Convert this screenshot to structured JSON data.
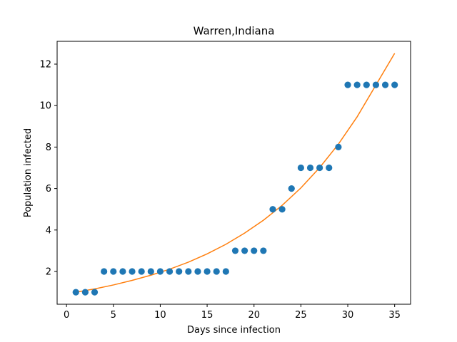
{
  "chart_data": {
    "type": "scatter",
    "title": "Warren,Indiana",
    "xlabel": "Days since infection",
    "ylabel": "Population infected",
    "xlim": [
      -1.0,
      36.7
    ],
    "ylim": [
      0.42,
      13.1
    ],
    "x_ticks": [
      0,
      5,
      10,
      15,
      20,
      25,
      30,
      35
    ],
    "y_ticks": [
      2,
      4,
      6,
      8,
      10,
      12
    ],
    "grid": false,
    "series": [
      {
        "kind": "points",
        "color": "#1f77b4",
        "x": [
          1,
          2,
          3,
          4,
          5,
          6,
          7,
          8,
          9,
          10,
          11,
          12,
          13,
          14,
          15,
          16,
          17,
          18,
          19,
          20,
          21,
          22,
          23,
          24,
          25,
          26,
          27,
          28,
          29,
          30,
          31,
          32,
          33,
          34,
          35
        ],
        "y": [
          1,
          1,
          1,
          2,
          2,
          2,
          2,
          2,
          2,
          2,
          2,
          2,
          2,
          2,
          2,
          2,
          2,
          3,
          3,
          3,
          3,
          5,
          5,
          6,
          7,
          7,
          7,
          7,
          8,
          11,
          11,
          11,
          11,
          11,
          11
        ]
      },
      {
        "kind": "fit-curve",
        "color": "#ff7f0e",
        "x": [
          1,
          3,
          5,
          7,
          9,
          11,
          13,
          15,
          17,
          19,
          21,
          23,
          25,
          27,
          29,
          31,
          33,
          35
        ],
        "y": [
          1.0,
          1.16,
          1.35,
          1.57,
          1.82,
          2.11,
          2.45,
          2.85,
          3.31,
          3.85,
          4.47,
          5.19,
          6.03,
          7.01,
          8.14,
          9.46,
          10.99,
          12.52
        ]
      }
    ]
  }
}
